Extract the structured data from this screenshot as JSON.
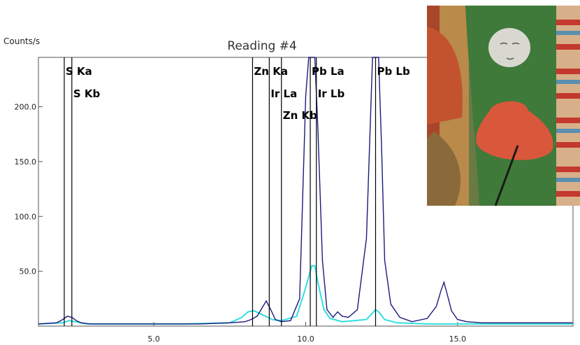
{
  "chart_data": {
    "type": "line",
    "title": "Reading #4",
    "ylabel": "Counts/s",
    "xlabel": "",
    "xlim": [
      1.2,
      18.8
    ],
    "ylim": [
      0,
      245
    ],
    "x_ticks": [
      5.0,
      10.0,
      15.0
    ],
    "x_tick_labels": [
      "5.0",
      "10.0",
      "15.0"
    ],
    "y_ticks": [
      50,
      100,
      150,
      200
    ],
    "y_tick_labels": [
      "50.0",
      "100.0",
      "150.0",
      "200.0"
    ],
    "grid": false,
    "series": [
      {
        "color": "#1a1a7a",
        "x": [
          1.2,
          1.8,
          2.0,
          2.15,
          2.3,
          2.45,
          2.6,
          2.9,
          3.5,
          4.5,
          5.5,
          6.5,
          7.5,
          8.0,
          8.2,
          8.4,
          8.55,
          8.7,
          8.85,
          9.0,
          9.2,
          9.5,
          9.8,
          10.0,
          10.1,
          10.2,
          10.3,
          10.4,
          10.55,
          10.7,
          10.9,
          11.05,
          11.2,
          11.4,
          11.7,
          12.0,
          12.2,
          12.3,
          12.4,
          12.5,
          12.6,
          12.8,
          13.1,
          13.5,
          14.0,
          14.3,
          14.45,
          14.55,
          14.65,
          14.8,
          15.0,
          15.3,
          15.8,
          16.5,
          17.5,
          18.8
        ],
        "y": [
          2,
          3,
          6,
          9,
          8,
          5,
          3,
          2,
          2,
          2,
          2,
          2,
          3,
          4,
          6,
          9,
          16,
          23,
          15,
          6,
          4,
          5,
          25,
          210,
          245,
          245,
          245,
          180,
          60,
          15,
          8,
          13,
          9,
          8,
          15,
          80,
          245,
          245,
          245,
          160,
          60,
          20,
          8,
          4,
          7,
          18,
          32,
          40,
          30,
          14,
          6,
          4,
          3,
          3,
          3,
          3
        ]
      },
      {
        "color": "#33dede",
        "x": [
          1.2,
          2.0,
          2.2,
          2.4,
          2.8,
          4.0,
          6.0,
          7.5,
          7.9,
          8.1,
          8.3,
          8.6,
          8.9,
          9.2,
          9.7,
          10.0,
          10.2,
          10.3,
          10.4,
          10.6,
          10.8,
          11.2,
          12.0,
          12.3,
          12.4,
          12.6,
          13.0,
          14.0,
          15.0,
          17.0,
          18.8
        ],
        "y": [
          2,
          3,
          5,
          4,
          2,
          2,
          2,
          3,
          8,
          13,
          14,
          10,
          6,
          5,
          9,
          35,
          55,
          55,
          40,
          15,
          7,
          4,
          6,
          15,
          13,
          6,
          3,
          2,
          2,
          2,
          2
        ]
      }
    ],
    "peak_lines": [
      {
        "x": 2.05,
        "label": "S Ka"
      },
      {
        "x": 2.3,
        "label": "S Kb"
      },
      {
        "x": 8.25,
        "label": "Zn Ka"
      },
      {
        "x": 8.8,
        "label": "Ir La"
      },
      {
        "x": 9.2,
        "label": "Zn Kb"
      },
      {
        "x": 10.15,
        "label": "Pb La"
      },
      {
        "x": 10.35,
        "label": "Ir Lb"
      },
      {
        "x": 12.3,
        "label": "Pb Lb"
      }
    ],
    "peak_label_rows": {
      "S Ka": 0,
      "S Kb": 1,
      "Zn Ka": 0,
      "Ir La": 1,
      "Zn Kb": 2,
      "Pb La": 0,
      "Ir Lb": 1,
      "Pb Lb": 0
    },
    "inset": {
      "description_icon": "painted-figure-photo-icon"
    }
  }
}
